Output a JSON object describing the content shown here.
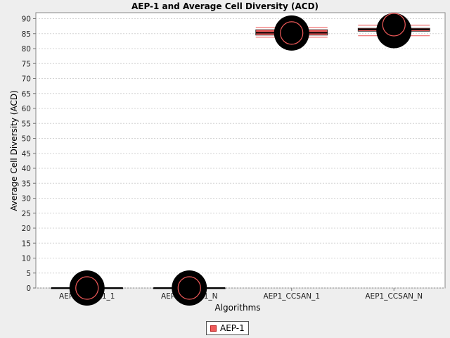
{
  "chart_data": {
    "type": "box",
    "title": "AEP-1 and Average Cell Diversity (ACD)",
    "xlabel": "Algorithms",
    "ylabel": "Average Cell Diversity (ACD)",
    "ylim": [
      0,
      92
    ],
    "yticks": [
      0,
      5,
      10,
      15,
      20,
      25,
      30,
      35,
      40,
      45,
      50,
      55,
      60,
      65,
      70,
      75,
      80,
      85,
      90
    ],
    "categories": [
      "AEP1_CCSA1_1",
      "AEP1_CCSA1_N",
      "AEP1_CCSAN_1",
      "AEP1_CCSAN_N"
    ],
    "grid": true,
    "legend_position": "bottom",
    "colors": {
      "box": "#ef5959",
      "outlier": "#000000",
      "mean_marker": "#ef5959"
    },
    "series": [
      {
        "name": "AEP-1",
        "boxes": [
          {
            "category": "AEP1_CCSA1_1",
            "min": 0,
            "q1": 0,
            "median": 0,
            "q3": 0,
            "max": 0,
            "mean": 0,
            "outlier": 0
          },
          {
            "category": "AEP1_CCSA1_N",
            "min": 0,
            "q1": 0,
            "median": 0,
            "q3": 0,
            "max": 0,
            "mean": 0,
            "outlier": 0
          },
          {
            "category": "AEP1_CCSAN_1",
            "min": 83.8,
            "q1": 84.5,
            "median": 85.3,
            "q3": 86.3,
            "max": 87.0,
            "mean": 85.2,
            "outlier": 85.2
          },
          {
            "category": "AEP1_CCSAN_N",
            "min": 84.3,
            "q1": 85.8,
            "median": 86.4,
            "q3": 86.8,
            "max": 87.8,
            "mean": 88.0,
            "outlier": 86.0
          }
        ]
      }
    ]
  }
}
